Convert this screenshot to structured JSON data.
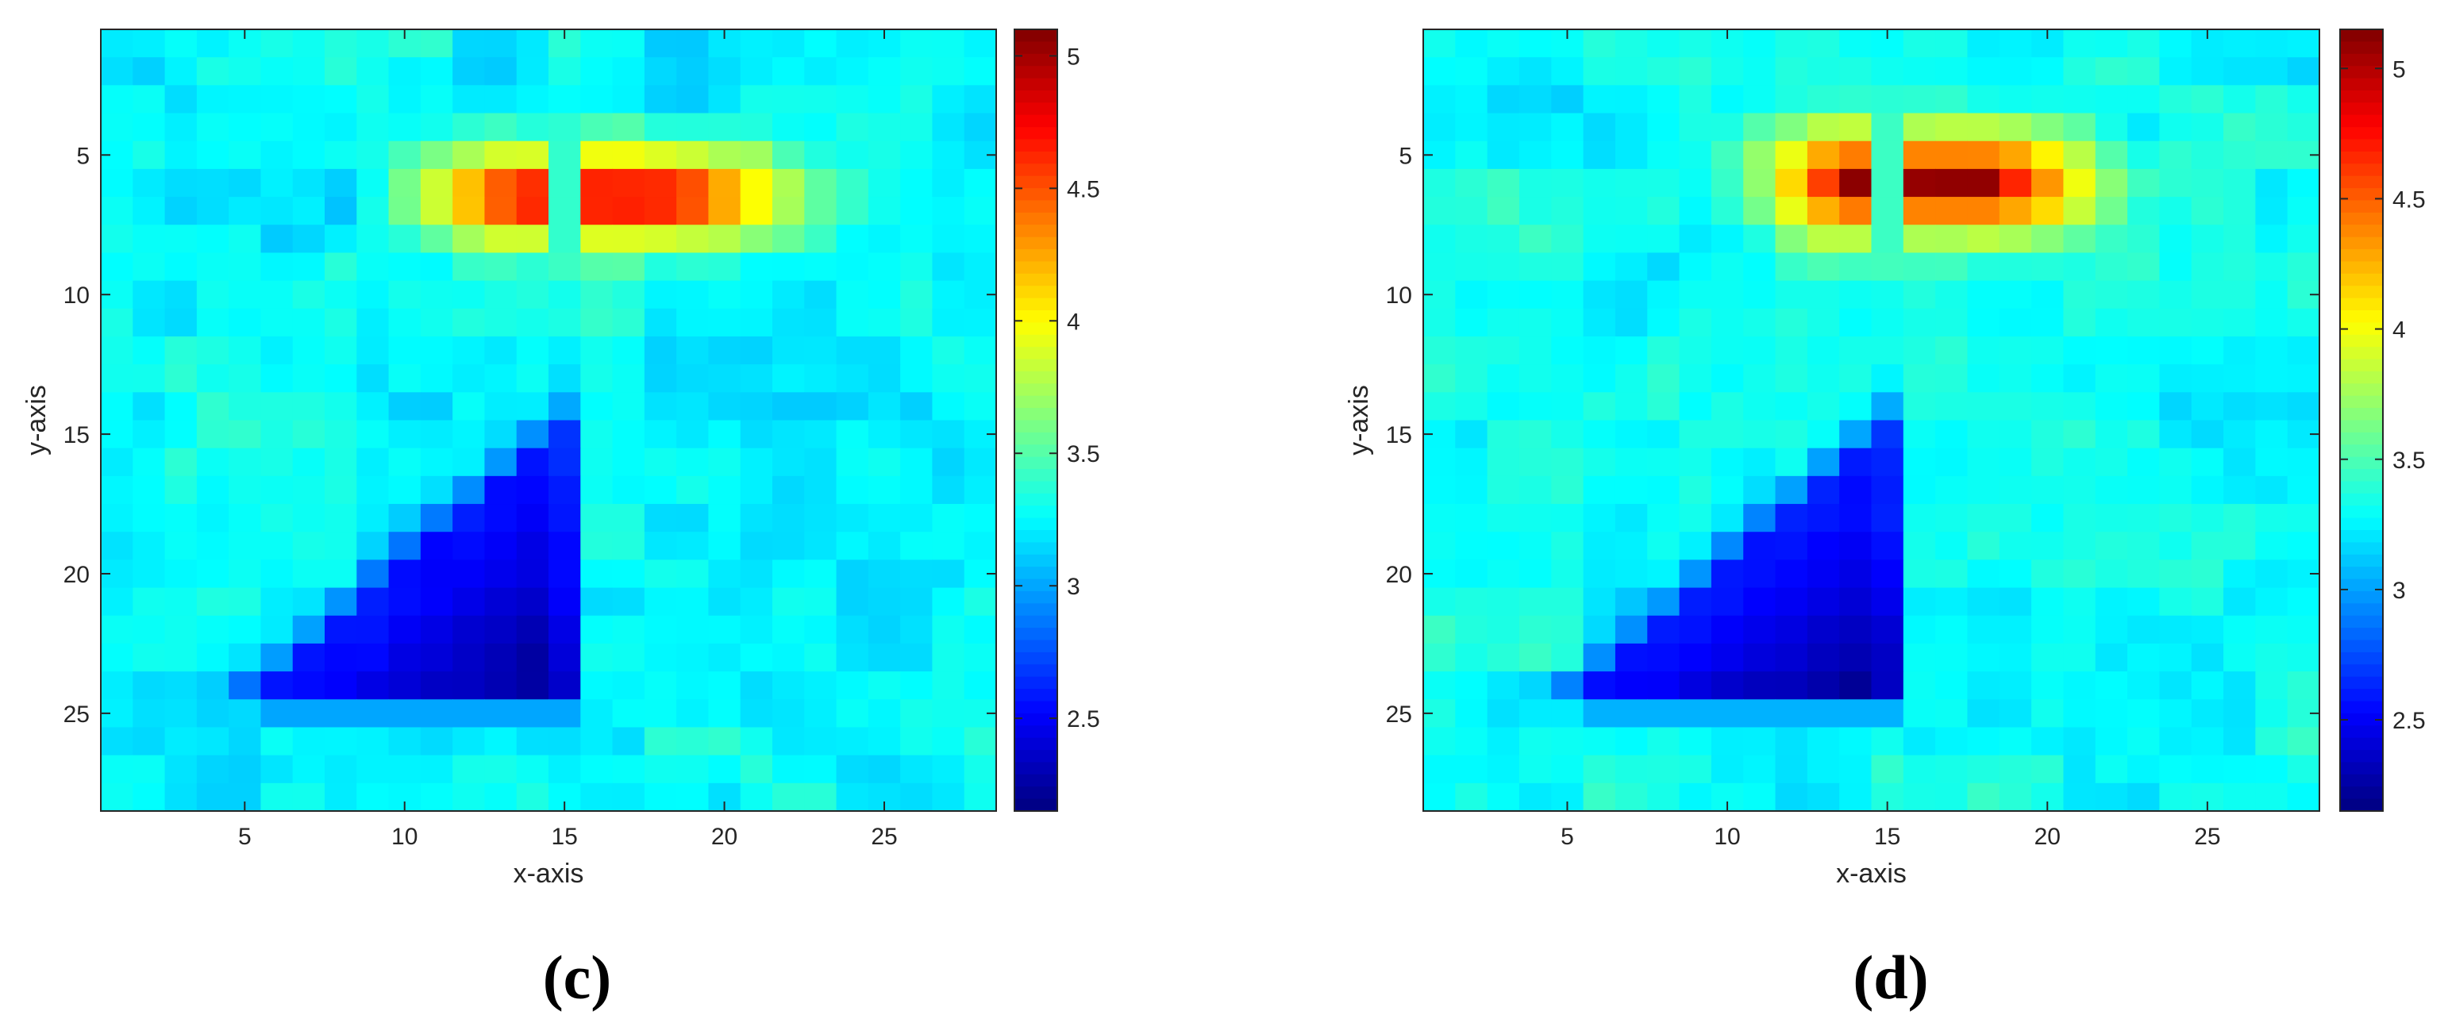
{
  "chart_data": [
    {
      "type": "heatmap",
      "panel_label": "(c)",
      "xlabel": "x-axis",
      "ylabel": "y-axis",
      "grid_size": [
        28,
        28
      ],
      "xlim": [
        0.5,
        28.5
      ],
      "ylim": [
        0.5,
        28.5
      ],
      "x_ticks": [
        5,
        10,
        15,
        20,
        25
      ],
      "y_ticks": [
        5,
        10,
        15,
        20,
        25
      ],
      "y_reversed": true,
      "colormap": "jet",
      "clim": [
        2.15,
        5.1
      ],
      "colorbar_ticks": [
        2.5,
        3,
        3.5,
        4,
        4.5,
        5
      ],
      "background_level": 3.25,
      "features": [
        {
          "kind": "high",
          "description": "horizontal hot band",
          "x_range": [
            10,
            23
          ],
          "y_range": [
            5,
            8
          ],
          "peak": 5.05,
          "peak_x_range": [
            14,
            18
          ]
        },
        {
          "kind": "low",
          "description": "triangular cold region",
          "vertices": [
            [
              15,
              15
            ],
            [
              15,
              24
            ],
            [
              6,
              24
            ]
          ],
          "min": 2.2
        }
      ]
    },
    {
      "type": "heatmap",
      "panel_label": "(d)",
      "xlabel": "x-axis",
      "ylabel": "y-axis",
      "grid_size": [
        28,
        28
      ],
      "xlim": [
        0.5,
        28.5
      ],
      "ylim": [
        0.5,
        28.5
      ],
      "x_ticks": [
        5,
        10,
        15,
        20,
        25
      ],
      "y_ticks": [
        5,
        10,
        15,
        20,
        25
      ],
      "y_reversed": true,
      "colormap": "jet",
      "clim": [
        2.15,
        5.15
      ],
      "colorbar_ticks": [
        2.5,
        3,
        3.5,
        4,
        4.5,
        5
      ],
      "background_level": 3.3,
      "features": [
        {
          "kind": "high",
          "description": "horizontal hot band",
          "x_range": [
            11,
            22
          ],
          "y_range": [
            4,
            8
          ],
          "peak": 5.1,
          "peak_x_range": [
            14,
            18
          ]
        },
        {
          "kind": "low",
          "description": "triangular cold region",
          "vertices": [
            [
              15,
              15
            ],
            [
              15,
              24
            ],
            [
              6,
              24
            ]
          ],
          "min": 2.2
        }
      ]
    }
  ]
}
